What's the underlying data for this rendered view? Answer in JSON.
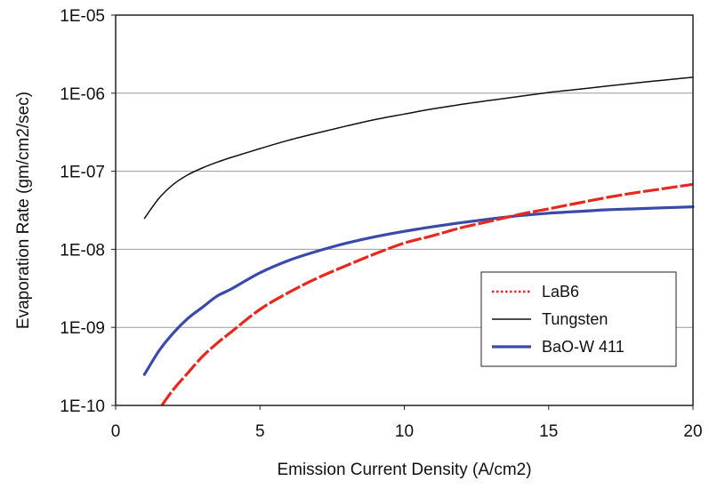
{
  "chart_data": {
    "type": "line",
    "xlabel": "Emission Current Density (A/cm2)",
    "ylabel": "Evaporation Rate (gm/cm2/sec)",
    "xlim": [
      0,
      20
    ],
    "ylim": [
      1e-10,
      1e-05
    ],
    "yscale": "log",
    "grid": "horizontal",
    "legend_position": "lower-right",
    "x_ticks": [
      "0",
      "5",
      "10",
      "15",
      "20"
    ],
    "y_ticks": [
      "1E-10",
      "1E-09",
      "1E-08",
      "1E-07",
      "1E-06",
      "1E-05"
    ],
    "series": [
      {
        "name": "LaB6",
        "color": "#e8281e",
        "style": "dotted",
        "x": [
          1.6,
          2,
          2.5,
          3,
          3.5,
          4,
          5,
          6,
          7,
          8,
          9,
          10,
          11,
          12,
          13,
          14,
          15,
          16,
          17,
          18,
          19,
          20
        ],
        "y": [
          1e-10,
          1.6e-10,
          2.6e-10,
          4.2e-10,
          6.2e-10,
          8.7e-10,
          1.7e-09,
          2.8e-09,
          4.3e-09,
          6.2e-09,
          8.8e-09,
          1.2e-08,
          1.5e-08,
          1.9e-08,
          2.3e-08,
          2.8e-08,
          3.3e-08,
          3.9e-08,
          4.6e-08,
          5.3e-08,
          6e-08,
          6.8e-08
        ]
      },
      {
        "name": "Tungsten",
        "color": "#111111",
        "style": "solid",
        "x": [
          1,
          1.5,
          2,
          2.5,
          3,
          3.5,
          4,
          5,
          6,
          7,
          8,
          9,
          10,
          11,
          12,
          13,
          14,
          15,
          16,
          17,
          18,
          19,
          20
        ],
        "y": [
          2.5e-08,
          4.5e-08,
          6.8e-08,
          9e-08,
          1.1e-07,
          1.3e-07,
          1.5e-07,
          1.95e-07,
          2.5e-07,
          3.1e-07,
          3.8e-07,
          4.6e-07,
          5.4e-07,
          6.3e-07,
          7.2e-07,
          8.1e-07,
          9.1e-07,
          1.02e-06,
          1.12e-06,
          1.23e-06,
          1.35e-06,
          1.47e-06,
          1.6e-06
        ]
      },
      {
        "name": "BaO-W 411",
        "color": "#3a4aa8",
        "style": "solid",
        "x": [
          1,
          1.5,
          2,
          2.5,
          3,
          3.5,
          4,
          5,
          6,
          7,
          8,
          9,
          10,
          11,
          12,
          13,
          14,
          15,
          16,
          17,
          18,
          19,
          20
        ],
        "y": [
          2.5e-10,
          5e-10,
          8.5e-10,
          1.3e-09,
          1.8e-09,
          2.5e-09,
          3.1e-09,
          5e-09,
          7.2e-09,
          9.5e-09,
          1.2e-08,
          1.45e-08,
          1.7e-08,
          1.95e-08,
          2.2e-08,
          2.45e-08,
          2.7e-08,
          2.9e-08,
          3.05e-08,
          3.2e-08,
          3.3e-08,
          3.4e-08,
          3.5e-08
        ]
      }
    ]
  }
}
